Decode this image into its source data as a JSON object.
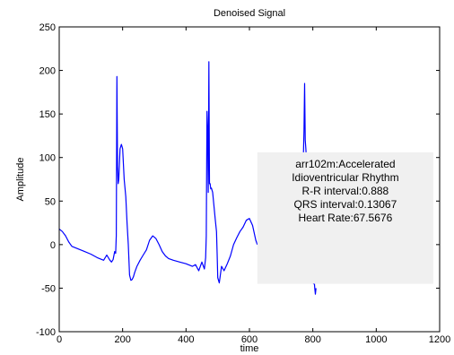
{
  "chart_data": {
    "type": "line",
    "title": "Denoised Signal",
    "xlabel": "time",
    "ylabel": "Amplitude",
    "xlim": [
      0,
      1200
    ],
    "ylim": [
      -100,
      250
    ],
    "xticks": [
      0,
      200,
      400,
      600,
      800,
      1000,
      1200
    ],
    "yticks": [
      -100,
      -50,
      0,
      50,
      100,
      150,
      200,
      250
    ],
    "grid": false,
    "colors": {
      "line": "#0000ff",
      "annotation_bg": "#f0f0f0",
      "axes": "#000000"
    },
    "series": [
      {
        "x": [
          0,
          10,
          20,
          30,
          40,
          60,
          80,
          100,
          120,
          140,
          150,
          160,
          165,
          170,
          175,
          178,
          180,
          182,
          184,
          186,
          188,
          192,
          196,
          200,
          205,
          210,
          214,
          218,
          222,
          226,
          230,
          234,
          238,
          245,
          255,
          265,
          275,
          285,
          295,
          305,
          315,
          325,
          335,
          345,
          360,
          380,
          400,
          420,
          430,
          440,
          450,
          458,
          462,
          464,
          466,
          468,
          470,
          472,
          474,
          476,
          478,
          480,
          484,
          488,
          492,
          496,
          498,
          500,
          505,
          512,
          520,
          530,
          540,
          550,
          560,
          570,
          580,
          590,
          600,
          610,
          620,
          625
        ],
        "y": [
          18,
          15,
          10,
          3,
          -2,
          -5,
          -8,
          -11,
          -15,
          -18,
          -12,
          -18,
          -20,
          -17,
          -8,
          -10,
          10,
          193,
          90,
          70,
          75,
          110,
          115,
          110,
          75,
          55,
          25,
          0,
          -35,
          -41,
          -40,
          -37,
          -32,
          -25,
          -18,
          -12,
          -6,
          5,
          10,
          7,
          0,
          -8,
          -13,
          -16,
          -18,
          -20,
          -22,
          -25,
          -23,
          -30,
          -20,
          -28,
          -15,
          10,
          153,
          130,
          60,
          210,
          70,
          70,
          64,
          65,
          60,
          45,
          30,
          15,
          -10,
          -38,
          -44,
          -25,
          -30,
          -22,
          -13,
          0,
          8,
          15,
          20,
          28,
          30,
          22,
          5,
          0
        ]
      },
      {
        "x": [
          770,
          772,
          774,
          776,
          778,
          780,
          782,
          784,
          786,
          788,
          790,
          792,
          794,
          796,
          798,
          800,
          802,
          804,
          806,
          808,
          810
        ],
        "y": [
          100,
          130,
          185,
          120,
          110,
          95,
          104,
          80,
          60,
          40,
          20,
          5,
          -10,
          -25,
          -30,
          -40,
          -45,
          -40,
          -50,
          -57,
          -50
        ]
      }
    ],
    "annotation": {
      "lines": [
        "arr102m:Accelerated",
        "Idioventricular Rhythm",
        "R-R interval:0.888",
        "QRS interval:0.13067",
        "Heart Rate:67.5676"
      ],
      "x_range": [
        625,
        1180
      ],
      "y_range": [
        -45,
        106
      ]
    }
  }
}
